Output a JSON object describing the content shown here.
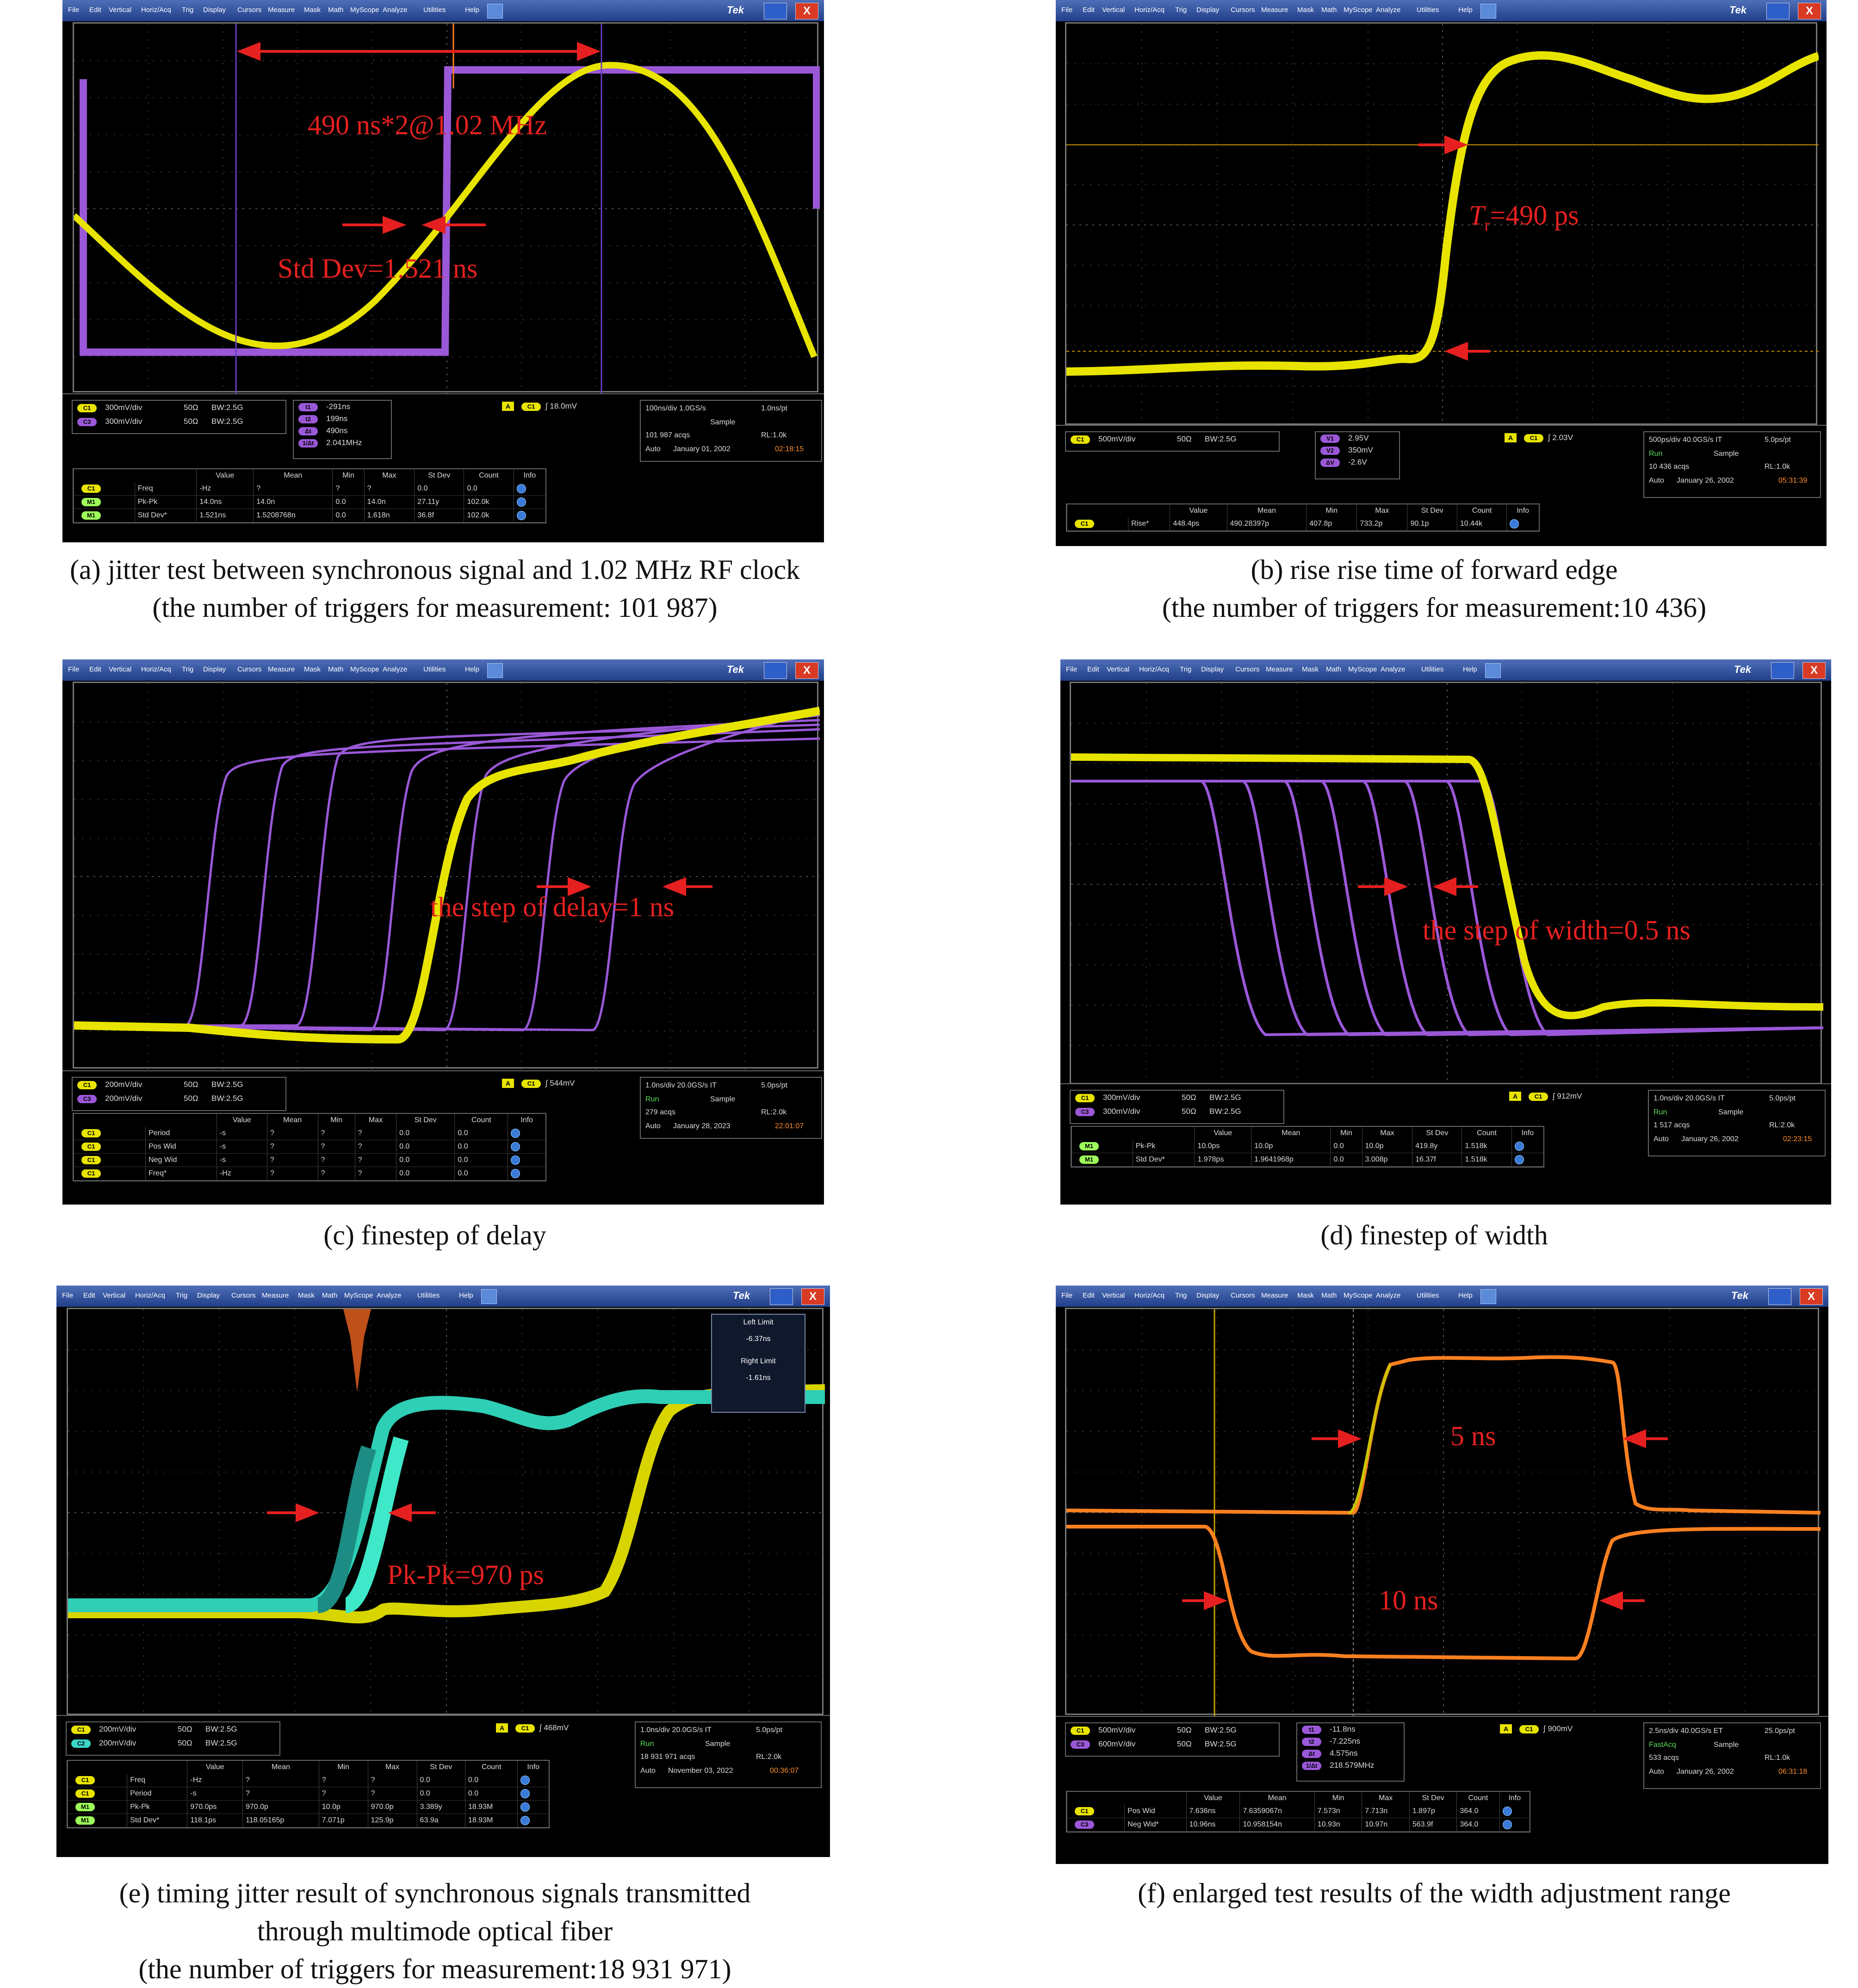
{
  "menu": [
    "File",
    "Edit",
    "Vertical",
    "Horiz/Acq",
    "Trig",
    "Display",
    "Cursors",
    "Measure",
    "Mask",
    "Math",
    "MyScope",
    "Analyze",
    "Utilities",
    "Help"
  ],
  "brand": "Tek",
  "close_glyph": "X",
  "panels": {
    "a": {
      "annotations": [
        "490 ns*2@1.02 MHz",
        "Std Dev=1.521 ns"
      ],
      "channels": [
        {
          "tag": "C1",
          "scale": "300mV/div",
          "imp": "50Ω",
          "bw": "BW:2.5G"
        },
        {
          "tag": "C3",
          "scale": "300mV/div",
          "imp": "50Ω",
          "bw": "BW:2.5G"
        }
      ],
      "cursors": [
        {
          "tag": "t1",
          "val": "-291ns"
        },
        {
          "tag": "t2",
          "val": "199ns"
        },
        {
          "tag": "Δt",
          "val": "490ns"
        },
        {
          "tag": "1/Δt",
          "val": "2.041MHz"
        }
      ],
      "trigger": {
        "tag": "A",
        "ch": "C1",
        "level": "18.0mV"
      },
      "acq": {
        "line1": "100ns/div  1.0GS/s",
        "line1b": "1.0ns/pt",
        "run": "",
        "mode": "Sample",
        "acqs": "101 987 acqs",
        "rl": "RL:1.0k",
        "auto": "Auto",
        "date": "January 01, 2002",
        "time": "02:18:15"
      },
      "meas_header": [
        "",
        "Value",
        "Mean",
        "Min",
        "Max",
        "St Dev",
        "Count",
        "Info"
      ],
      "meas_rows": [
        [
          "C1",
          "Freq",
          "-Hz",
          "?",
          "?",
          "?",
          "0.0",
          "0.0"
        ],
        [
          "M1",
          "Pk-Pk",
          "14.0ns",
          "14.0n",
          "0.0",
          "14.0n",
          "27.11y",
          "102.0k"
        ],
        [
          "M1",
          "Std Dev*",
          "1.521ns",
          "1.5208768n",
          "0.0",
          "1.618n",
          "36.8f",
          "102.0k"
        ]
      ],
      "caption": [
        "(a) jitter test between synchronous signal and 1.02 MHz RF clock",
        "(the number of triggers for measurement: 101 987)"
      ]
    },
    "b": {
      "annotations": [
        "T",
        "r",
        "=490 ps"
      ],
      "channels": [
        {
          "tag": "C1",
          "scale": "500mV/div",
          "imp": "50Ω",
          "bw": "BW:2.5G"
        }
      ],
      "cursors": [
        {
          "tag": "V1",
          "val": "2.95V"
        },
        {
          "tag": "V2",
          "val": "350mV"
        },
        {
          "tag": "ΔV",
          "val": "-2.6V"
        }
      ],
      "trigger": {
        "tag": "A",
        "ch": "C1",
        "level": "2.03V"
      },
      "acq": {
        "line1": "500ps/div  40.0GS/s  IT",
        "line1b": "5.0ps/pt",
        "run": "Run",
        "mode": "Sample",
        "acqs": "10 436 acqs",
        "rl": "RL:1.0k",
        "auto": "Auto",
        "date": "January 26, 2002",
        "time": "05:31:39"
      },
      "meas_header": [
        "",
        "Value",
        "Mean",
        "Min",
        "Max",
        "St Dev",
        "Count",
        "Info"
      ],
      "meas_rows": [
        [
          "C1",
          "Rise*",
          "448.4ps",
          "490.28397p",
          "407.8p",
          "733.2p",
          "90.1p",
          "10.44k"
        ]
      ],
      "caption": [
        "(b) rise rise time of forward edge",
        "(the number of triggers for measurement:10 436)"
      ]
    },
    "c": {
      "annotations": [
        "the step of delay=1 ns"
      ],
      "channels": [
        {
          "tag": "C1",
          "scale": "200mV/div",
          "imp": "50Ω",
          "bw": "BW:2.5G"
        },
        {
          "tag": "C3",
          "scale": "200mV/div",
          "imp": "50Ω",
          "bw": "BW:2.5G"
        }
      ],
      "trigger": {
        "tag": "A",
        "ch": "C1",
        "level": "544mV"
      },
      "acq": {
        "line1": "1.0ns/div  20.0GS/s  IT",
        "line1b": "5.0ps/pt",
        "run": "Run",
        "mode": "Sample",
        "acqs": "279 acqs",
        "rl": "RL:2.0k",
        "auto": "Auto",
        "date": "January 28, 2023",
        "time": "22:01:07"
      },
      "meas_header": [
        "",
        "Value",
        "Mean",
        "Min",
        "Max",
        "St Dev",
        "Count",
        "Info"
      ],
      "meas_rows": [
        [
          "C1",
          "Period",
          "-s",
          "?",
          "?",
          "?",
          "0.0",
          "0.0"
        ],
        [
          "C1",
          "Pos Wid",
          "-s",
          "?",
          "?",
          "?",
          "0.0",
          "0.0"
        ],
        [
          "C1",
          "Neg Wid",
          "-s",
          "?",
          "?",
          "?",
          "0.0",
          "0.0"
        ],
        [
          "C1",
          "Freq*",
          "-Hz",
          "?",
          "?",
          "?",
          "0.0",
          "0.0"
        ]
      ],
      "caption": [
        "(c) finestep of delay"
      ]
    },
    "d": {
      "annotations": [
        "the step of width=0.5 ns"
      ],
      "channels": [
        {
          "tag": "C1",
          "scale": "300mV/div",
          "imp": "50Ω",
          "bw": "BW:2.5G"
        },
        {
          "tag": "C3",
          "scale": "300mV/div",
          "imp": "50Ω",
          "bw": "BW:2.5G"
        }
      ],
      "trigger": {
        "tag": "A",
        "ch": "C1",
        "level": "912mV"
      },
      "acq": {
        "line1": "1.0ns/div  20.0GS/s  IT",
        "line1b": "5.0ps/pt",
        "run": "Run",
        "mode": "Sample",
        "acqs": "1 517 acqs",
        "rl": "RL:2.0k",
        "auto": "Auto",
        "date": "January 26, 2002",
        "time": "02:23:15"
      },
      "meas_header": [
        "",
        "Value",
        "Mean",
        "Min",
        "Max",
        "St Dev",
        "Count",
        "Info"
      ],
      "meas_rows": [
        [
          "M1",
          "Pk-Pk",
          "10.0ps",
          "10.0p",
          "0.0",
          "10.0p",
          "419.8y",
          "1.518k"
        ],
        [
          "M1",
          "Std Dev*",
          "1.978ps",
          "1.9641968p",
          "0.0",
          "3.008p",
          "16.37f",
          "1.518k"
        ]
      ],
      "caption": [
        "(d) finestep of width"
      ]
    },
    "e": {
      "annotations": [
        "Pk-Pk=970 ps"
      ],
      "limits": {
        "left_label": "Left Limit",
        "left_val": "-6.37ns",
        "right_label": "Right Limit",
        "right_val": "-1.61ns"
      },
      "channels": [
        {
          "tag": "C1",
          "scale": "200mV/div",
          "imp": "50Ω",
          "bw": "BW:2.5G"
        },
        {
          "tag": "C2",
          "scale": "200mV/div",
          "imp": "50Ω",
          "bw": "BW:2.5G"
        }
      ],
      "trigger": {
        "tag": "A",
        "ch": "C1",
        "level": "468mV"
      },
      "acq": {
        "line1": "1.0ns/div  20.0GS/s  IT",
        "line1b": "5.0ps/pt",
        "run": "Run",
        "mode": "Sample",
        "acqs": "18 931 971 acqs",
        "rl": "RL:2.0k",
        "auto": "Auto",
        "date": "November 03, 2022",
        "time": "00:36:07"
      },
      "meas_header": [
        "",
        "Value",
        "Mean",
        "Min",
        "Max",
        "St Dev",
        "Count",
        "Info"
      ],
      "meas_rows": [
        [
          "C1",
          "Freq",
          "-Hz",
          "?",
          "?",
          "?",
          "0.0",
          "0.0"
        ],
        [
          "C1",
          "Period",
          "-s",
          "?",
          "?",
          "?",
          "0.0",
          "0.0"
        ],
        [
          "M1",
          "Pk-Pk",
          "970.0ps",
          "970.0p",
          "10.0p",
          "970.0p",
          "3.389y",
          "18.93M"
        ],
        [
          "M1",
          "Std Dev*",
          "118.1ps",
          "118.05165p",
          "7.071p",
          "125.9p",
          "63.9a",
          "18.93M"
        ]
      ],
      "caption": [
        "(e) timing jitter result of synchronous signals transmitted",
        "through multimode optical fiber",
        "(the number of triggers for measurement:18 931 971)"
      ]
    },
    "f": {
      "annotations": [
        "5 ns",
        "10 ns"
      ],
      "channels": [
        {
          "tag": "C1",
          "scale": "500mV/div",
          "imp": "50Ω",
          "bw": "BW:2.5G"
        },
        {
          "tag": "C3",
          "scale": "600mV/div",
          "imp": "50Ω",
          "bw": "BW:2.5G"
        }
      ],
      "cursors": [
        {
          "tag": "t1",
          "val": "-11.8ns"
        },
        {
          "tag": "t2",
          "val": "-7.225ns"
        },
        {
          "tag": "Δt",
          "val": "4.575ns"
        },
        {
          "tag": "1/Δt",
          "val": "218.579MHz"
        }
      ],
      "trigger": {
        "tag": "A",
        "ch": "C1",
        "level": "900mV"
      },
      "acq": {
        "line1": "2.5ns/div  40.0GS/s  ET",
        "line1b": "25.0ps/pt",
        "run": "FastAcq",
        "mode": "Sample",
        "acqs": "533 acqs",
        "rl": "RL:1.0k",
        "auto": "Auto",
        "date": "January 26, 2002",
        "time": "06:31:18"
      },
      "meas_header": [
        "",
        "Value",
        "Mean",
        "Min",
        "Max",
        "St Dev",
        "Count",
        "Info"
      ],
      "meas_rows": [
        [
          "C1",
          "Pos Wid",
          "7.636ns",
          "7.6359067n",
          "7.573n",
          "7.713n",
          "1.897p",
          "364.0"
        ],
        [
          "C3",
          "Neg Wid*",
          "10.96ns",
          "10.958154n",
          "10.93n",
          "10.97n",
          "563.9f",
          "364.0"
        ]
      ],
      "caption": [
        "(f) enlarged test results of the width adjustment range"
      ]
    }
  }
}
